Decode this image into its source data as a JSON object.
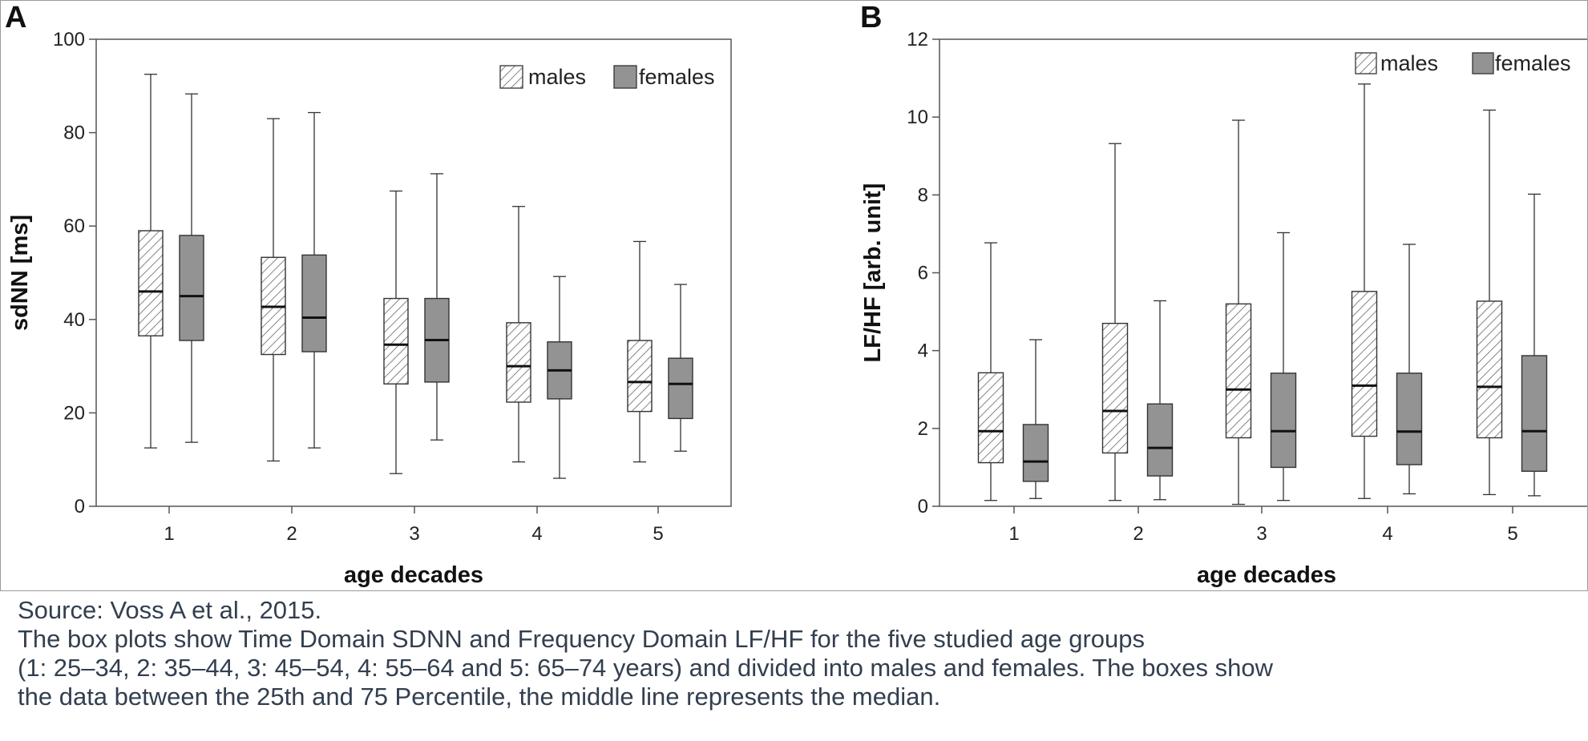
{
  "chart_data": [
    {
      "type": "boxplot",
      "panel": "A",
      "xlabel": "age decades",
      "ylabel": "sdNN [ms]",
      "ylim": [
        0,
        100
      ],
      "yticks": [
        0,
        20,
        40,
        60,
        80,
        100
      ],
      "categories": [
        "1",
        "2",
        "3",
        "4",
        "5"
      ],
      "legend": [
        "males",
        "females"
      ],
      "legend_position": "top-right",
      "series": [
        {
          "name": "males",
          "pattern": "hatched",
          "boxes": [
            {
              "min": 12.5,
              "q1": 36.5,
              "median": 46,
              "q3": 59,
              "max": 92.5
            },
            {
              "min": 9.7,
              "q1": 32.5,
              "median": 42.7,
              "q3": 53.3,
              "max": 83
            },
            {
              "min": 7,
              "q1": 26.2,
              "median": 34.6,
              "q3": 44.5,
              "max": 67.5
            },
            {
              "min": 9.5,
              "q1": 22.3,
              "median": 30,
              "q3": 39.3,
              "max": 64.2
            },
            {
              "min": 9.5,
              "q1": 20.3,
              "median": 26.6,
              "q3": 35.5,
              "max": 56.7
            }
          ]
        },
        {
          "name": "females",
          "pattern": "solid",
          "boxes": [
            {
              "min": 13.7,
              "q1": 35.5,
              "median": 45,
              "q3": 58,
              "max": 88.3
            },
            {
              "min": 12.5,
              "q1": 33.1,
              "median": 40.4,
              "q3": 53.8,
              "max": 84.3
            },
            {
              "min": 14.2,
              "q1": 26.6,
              "median": 35.6,
              "q3": 44.5,
              "max": 71.2
            },
            {
              "min": 6,
              "q1": 23,
              "median": 29.1,
              "q3": 35.2,
              "max": 49.2
            },
            {
              "min": 11.8,
              "q1": 18.8,
              "median": 26.2,
              "q3": 31.7,
              "max": 47.5
            }
          ]
        }
      ]
    },
    {
      "type": "boxplot",
      "panel": "B",
      "xlabel": "age decades",
      "ylabel": "LF/HF [arb. unit]",
      "ylim": [
        0,
        12
      ],
      "yticks": [
        0,
        2,
        4,
        6,
        8,
        10,
        12
      ],
      "categories": [
        "1",
        "2",
        "3",
        "4",
        "5"
      ],
      "legend": [
        "males",
        "females"
      ],
      "legend_position": "top-right",
      "series": [
        {
          "name": "males",
          "pattern": "hatched",
          "boxes": [
            {
              "min": 0.15,
              "q1": 1.12,
              "median": 1.93,
              "q3": 3.43,
              "max": 6.77
            },
            {
              "min": 0.15,
              "q1": 1.37,
              "median": 2.45,
              "q3": 4.7,
              "max": 9.32
            },
            {
              "min": 0.05,
              "q1": 1.76,
              "median": 3,
              "q3": 5.2,
              "max": 9.92
            },
            {
              "min": 0.2,
              "q1": 1.8,
              "median": 3.1,
              "q3": 5.52,
              "max": 10.85
            },
            {
              "min": 0.3,
              "q1": 1.76,
              "median": 3.07,
              "q3": 5.27,
              "max": 10.18
            }
          ]
        },
        {
          "name": "females",
          "pattern": "solid",
          "boxes": [
            {
              "min": 0.2,
              "q1": 0.64,
              "median": 1.15,
              "q3": 2.1,
              "max": 4.28
            },
            {
              "min": 0.17,
              "q1": 0.78,
              "median": 1.5,
              "q3": 2.63,
              "max": 5.28
            },
            {
              "min": 0.15,
              "q1": 1,
              "median": 1.93,
              "q3": 3.42,
              "max": 7.03
            },
            {
              "min": 0.32,
              "q1": 1.07,
              "median": 1.92,
              "q3": 3.42,
              "max": 6.73
            },
            {
              "min": 0.27,
              "q1": 0.9,
              "median": 1.93,
              "q3": 3.87,
              "max": 8.02
            }
          ]
        }
      ]
    }
  ],
  "colors": {
    "female_fill": "#939393",
    "hatch_line": "#666666",
    "stroke": "#333333",
    "median": "#111111",
    "caption_text": "#333f4f"
  },
  "caption": {
    "source": "Source: Voss A et al., 2015.",
    "lines": [
      "The box plots show Time Domain SDNN and Frequency Domain LF/HF for the five studied age groups",
      "(1: 25–34, 2: 35–44, 3: 45–54, 4: 55–64 and 5: 65–74 years) and divided into males and females. The boxes show",
      "the data between the 25th and 75 Percentile, the middle line represents the median."
    ]
  }
}
